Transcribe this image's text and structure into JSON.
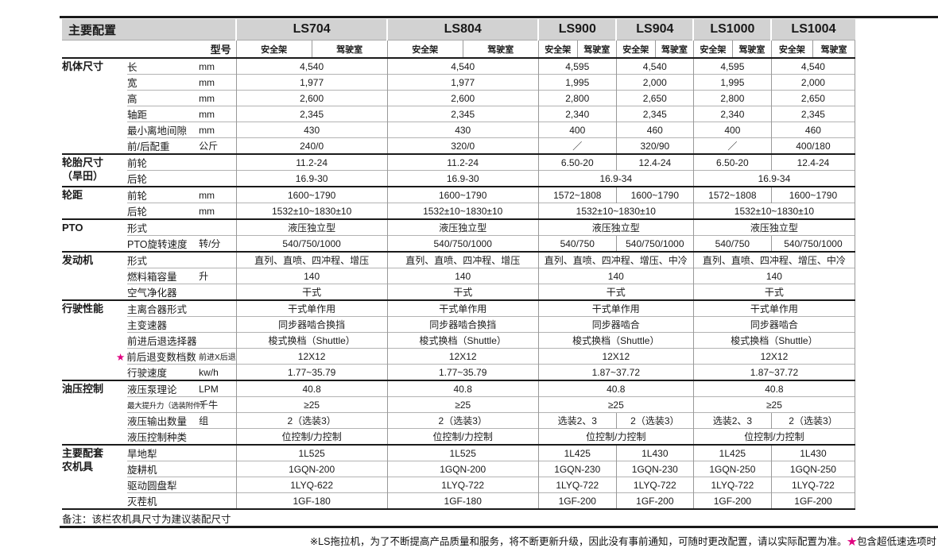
{
  "page": {
    "title": "主要配置",
    "model_label": "型号",
    "models": [
      "LS704",
      "LS804",
      "LS900",
      "LS904",
      "LS1000",
      "LS1004"
    ],
    "sub_columns": [
      "安全架",
      "驾驶室"
    ],
    "star": "★"
  },
  "colors": {
    "accent_pink": "#e0007f",
    "header_gray": "#d2d2d2",
    "section_line": "#1a1a1a",
    "row_line": "#b3b3b3"
  },
  "rows": [
    {
      "section": "机体尺寸",
      "srows": 6,
      "label": "长",
      "unit": "mm",
      "values": [
        {
          "t": "4,540",
          "c": 2
        },
        {
          "t": "4,540",
          "c": 2
        },
        {
          "t": "4,595",
          "c": 2
        },
        {
          "t": "4,540",
          "c": 2
        },
        {
          "t": "4,595",
          "c": 2
        },
        {
          "t": "4,540",
          "c": 2
        }
      ]
    },
    {
      "label": "宽",
      "unit": "mm",
      "values": [
        {
          "t": "1,977",
          "c": 2
        },
        {
          "t": "1,977",
          "c": 2
        },
        {
          "t": "1,995",
          "c": 2
        },
        {
          "t": "2,000",
          "c": 2
        },
        {
          "t": "1,995",
          "c": 2
        },
        {
          "t": "2,000",
          "c": 2
        }
      ]
    },
    {
      "label": "高",
      "unit": "mm",
      "values": [
        {
          "t": "2,600",
          "c": 2
        },
        {
          "t": "2,600",
          "c": 2
        },
        {
          "t": "2,800",
          "c": 2
        },
        {
          "t": "2,650",
          "c": 2
        },
        {
          "t": "2,800",
          "c": 2
        },
        {
          "t": "2,650",
          "c": 2
        }
      ]
    },
    {
      "label": "轴距",
      "unit": "mm",
      "values": [
        {
          "t": "2,345",
          "c": 2
        },
        {
          "t": "2,345",
          "c": 2
        },
        {
          "t": "2,340",
          "c": 2
        },
        {
          "t": "2,345",
          "c": 2
        },
        {
          "t": "2,340",
          "c": 2
        },
        {
          "t": "2,345",
          "c": 2
        }
      ]
    },
    {
      "label": "最小离地间隙",
      "unit": "mm",
      "values": [
        {
          "t": "430",
          "c": 2
        },
        {
          "t": "430",
          "c": 2
        },
        {
          "t": "400",
          "c": 2
        },
        {
          "t": "460",
          "c": 2
        },
        {
          "t": "400",
          "c": 2
        },
        {
          "t": "460",
          "c": 2
        }
      ]
    },
    {
      "label": "前/后配重",
      "unit": "公斤",
      "values": [
        {
          "t": "240/0",
          "c": 2
        },
        {
          "t": "320/0",
          "c": 2
        },
        {
          "t": "／",
          "c": 2
        },
        {
          "t": "320/90",
          "c": 2
        },
        {
          "t": "／",
          "c": 2
        },
        {
          "t": "400/180",
          "c": 2
        }
      ]
    },
    {
      "section": "轮胎尺寸\n（旱田）",
      "srows": 2,
      "label": "前轮",
      "unit": "",
      "values": [
        {
          "t": "11.2-24",
          "c": 2
        },
        {
          "t": "11.2-24",
          "c": 2
        },
        {
          "t": "6.50-20",
          "c": 2
        },
        {
          "t": "12.4-24",
          "c": 2
        },
        {
          "t": "6.50-20",
          "c": 2
        },
        {
          "t": "12.4-24",
          "c": 2
        }
      ]
    },
    {
      "label": "后轮",
      "unit": "",
      "values": [
        {
          "t": "16.9-30",
          "c": 2
        },
        {
          "t": "16.9-30",
          "c": 2
        },
        {
          "t": "16.9-34",
          "c": 4
        },
        {
          "t": "16.9-34",
          "c": 4
        }
      ]
    },
    {
      "section": "轮距",
      "srows": 2,
      "label": "前轮",
      "unit": "mm",
      "values": [
        {
          "t": "1600~1790",
          "c": 2
        },
        {
          "t": "1600~1790",
          "c": 2
        },
        {
          "t": "1572~1808",
          "c": 2
        },
        {
          "t": "1600~1790",
          "c": 2
        },
        {
          "t": "1572~1808",
          "c": 2
        },
        {
          "t": "1600~1790",
          "c": 2
        }
      ]
    },
    {
      "label": "后轮",
      "unit": "mm",
      "values": [
        {
          "t": "1532±10~1830±10",
          "c": 2
        },
        {
          "t": "1532±10~1830±10",
          "c": 2
        },
        {
          "t": "1532±10~1830±10",
          "c": 4
        },
        {
          "t": "1532±10~1830±10",
          "c": 4
        }
      ]
    },
    {
      "section": "PTO",
      "srows": 2,
      "label": "形式",
      "unit": "",
      "values": [
        {
          "t": "液压独立型",
          "c": 2
        },
        {
          "t": "液压独立型",
          "c": 2
        },
        {
          "t": "液压独立型",
          "c": 4
        },
        {
          "t": "液压独立型",
          "c": 4
        }
      ]
    },
    {
      "label": "PTO旋转速度",
      "unit": "转/分",
      "values": [
        {
          "t": "540/750/1000",
          "c": 2
        },
        {
          "t": "540/750/1000",
          "c": 2
        },
        {
          "t": "540/750",
          "c": 2
        },
        {
          "t": "540/750/1000",
          "c": 2
        },
        {
          "t": "540/750",
          "c": 2
        },
        {
          "t": "540/750/1000",
          "c": 2
        }
      ]
    },
    {
      "section": "发动机",
      "srows": 3,
      "label": "形式",
      "unit": "",
      "values": [
        {
          "t": "直列、直喷、四冲程、增压",
          "c": 2
        },
        {
          "t": "直列、直喷、四冲程、增压",
          "c": 2
        },
        {
          "t": "直列、直喷、四冲程、增压、中冷",
          "c": 4
        },
        {
          "t": "直列、直喷、四冲程、增压、中冷",
          "c": 4
        }
      ]
    },
    {
      "label": "燃料箱容量",
      "unit": "升",
      "values": [
        {
          "t": "140",
          "c": 2
        },
        {
          "t": "140",
          "c": 2
        },
        {
          "t": "140",
          "c": 4
        },
        {
          "t": "140",
          "c": 4
        }
      ]
    },
    {
      "label": "空气净化器",
      "unit": "",
      "values": [
        {
          "t": "干式",
          "c": 2
        },
        {
          "t": "干式",
          "c": 2
        },
        {
          "t": "干式",
          "c": 4
        },
        {
          "t": "干式",
          "c": 4
        }
      ]
    },
    {
      "section": "行驶性能",
      "srows": 5,
      "label": "主离合器形式",
      "unit": "",
      "values": [
        {
          "t": "干式单作用",
          "c": 2
        },
        {
          "t": "干式单作用",
          "c": 2
        },
        {
          "t": "干式单作用",
          "c": 4
        },
        {
          "t": "干式单作用",
          "c": 4
        }
      ]
    },
    {
      "label": "主变速器",
      "unit": "",
      "values": [
        {
          "t": "同步器啮合换挡",
          "c": 2
        },
        {
          "t": "同步器啮合换挡",
          "c": 2
        },
        {
          "t": "同步器啮合",
          "c": 4
        },
        {
          "t": "同步器啮合",
          "c": 4
        }
      ]
    },
    {
      "label": "前进后退选择器",
      "unit": "",
      "values": [
        {
          "t": "梭式换档（Shuttle）",
          "c": 2
        },
        {
          "t": "梭式换档（Shuttle）",
          "c": 2
        },
        {
          "t": "梭式换档（Shuttle）",
          "c": 4
        },
        {
          "t": "梭式换档（Shuttle）",
          "c": 4
        }
      ]
    },
    {
      "star": true,
      "label": "前后退变数档数",
      "unit": "前进X后退",
      "values": [
        {
          "t": "12X12",
          "c": 2
        },
        {
          "t": "12X12",
          "c": 2
        },
        {
          "t": "12X12",
          "c": 4
        },
        {
          "t": "12X12",
          "c": 4
        }
      ]
    },
    {
      "label": "行驶速度",
      "unit": "kw/h",
      "values": [
        {
          "t": "1.77~35.79",
          "c": 2
        },
        {
          "t": "1.77~35.79",
          "c": 2
        },
        {
          "t": "1.87~37.72",
          "c": 4
        },
        {
          "t": "1.87~37.72",
          "c": 4
        }
      ]
    },
    {
      "section": "油压控制",
      "srows": 4,
      "label": "液压泵理论",
      "unit": "LPM",
      "values": [
        {
          "t": "40.8",
          "c": 2
        },
        {
          "t": "40.8",
          "c": 2
        },
        {
          "t": "40.8",
          "c": 4
        },
        {
          "t": "40.8",
          "c": 4
        }
      ]
    },
    {
      "label": "最大提升力（选装附件）",
      "unit": "千牛",
      "values": [
        {
          "t": "≥25",
          "c": 2
        },
        {
          "t": "≥25",
          "c": 2
        },
        {
          "t": "≥25",
          "c": 4
        },
        {
          "t": "≥25",
          "c": 4
        }
      ]
    },
    {
      "label": "液压输出数量",
      "unit": "组",
      "values": [
        {
          "t": "2（选装3）",
          "c": 2
        },
        {
          "t": "2（选装3）",
          "c": 2
        },
        {
          "t": "选装2、3",
          "c": 2
        },
        {
          "t": "2（选装3）",
          "c": 2
        },
        {
          "t": "选装2、3",
          "c": 2
        },
        {
          "t": "2（选装3）",
          "c": 2
        }
      ]
    },
    {
      "label": "液压控制种类",
      "unit": "",
      "values": [
        {
          "t": "位控制/力控制",
          "c": 2
        },
        {
          "t": "位控制/力控制",
          "c": 2
        },
        {
          "t": "位控制/力控制",
          "c": 4
        },
        {
          "t": "位控制/力控制",
          "c": 4
        }
      ]
    },
    {
      "section": "主要配套\n农机具",
      "srows": 4,
      "label": "旱地犁",
      "unit": "",
      "values": [
        {
          "t": "1L525",
          "c": 2
        },
        {
          "t": "1L525",
          "c": 2
        },
        {
          "t": "1L425",
          "c": 2
        },
        {
          "t": "1L430",
          "c": 2
        },
        {
          "t": "1L425",
          "c": 2
        },
        {
          "t": "1L430",
          "c": 2
        }
      ]
    },
    {
      "label": "旋耕机",
      "unit": "",
      "values": [
        {
          "t": "1GQN-200",
          "c": 2
        },
        {
          "t": "1GQN-200",
          "c": 2
        },
        {
          "t": "1GQN-230",
          "c": 2
        },
        {
          "t": "1GQN-230",
          "c": 2
        },
        {
          "t": "1GQN-250",
          "c": 2
        },
        {
          "t": "1GQN-250",
          "c": 2
        }
      ]
    },
    {
      "label": "驱动圆盘犁",
      "unit": "",
      "values": [
        {
          "t": "1LYQ-622",
          "c": 2
        },
        {
          "t": "1LYQ-722",
          "c": 2
        },
        {
          "t": "1LYQ-722",
          "c": 2
        },
        {
          "t": "1LYQ-722",
          "c": 2
        },
        {
          "t": "1LYQ-722",
          "c": 2
        },
        {
          "t": "1LYQ-722",
          "c": 2
        }
      ]
    },
    {
      "label": "灭茬机",
      "unit": "",
      "values": [
        {
          "t": "1GF-180",
          "c": 2
        },
        {
          "t": "1GF-180",
          "c": 2
        },
        {
          "t": "1GF-200",
          "c": 2
        },
        {
          "t": "1GF-200",
          "c": 2
        },
        {
          "t": "1GF-200",
          "c": 2
        },
        {
          "t": "1GF-200",
          "c": 2
        }
      ]
    }
  ],
  "remark": "备注：该栏农机具尺寸为建议装配尺寸",
  "footer": {
    "main": "※LS拖拉机，为了不断提高产品质量和服务，将不断更新升级，因此没有事前通知，可随时更改配置，请以实际配置为准。",
    "star": "★",
    "suffix": "包含超低速选项时"
  }
}
